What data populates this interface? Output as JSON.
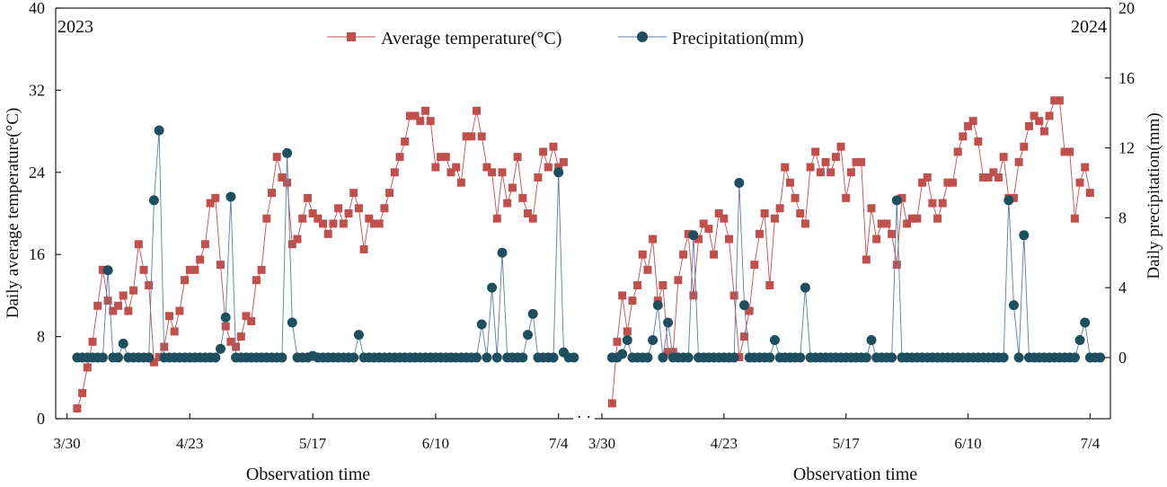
{
  "chart_data": {
    "type": "line",
    "legend": {
      "position": "top-center",
      "items": [
        {
          "name": "Average temperature(°C)",
          "marker": "square",
          "color": "#c0504d"
        },
        {
          "name": "Precipitation(mm)",
          "marker": "circle",
          "color": "#1f4e5f"
        }
      ]
    },
    "y_left": {
      "label": "Daily average temperature(°C)",
      "ylim": [
        0,
        40
      ],
      "ticks": [
        0,
        8,
        16,
        24,
        32,
        40
      ]
    },
    "y_right": {
      "label": "Daily precipitation(mm)",
      "ylim": [
        -3.5,
        20
      ],
      "ticks": [
        0,
        4,
        8,
        12,
        16,
        20
      ]
    },
    "xlabel": "Observation time",
    "x_ticks": [
      {
        "label": "3/30",
        "day": 0
      },
      {
        "label": "4/23",
        "day": 24
      },
      {
        "label": "5/17",
        "day": 48
      },
      {
        "label": "6/10",
        "day": 72
      },
      {
        "label": "7/4",
        "day": 96
      }
    ],
    "panels": [
      {
        "year_label": "2023",
        "start_day": 2,
        "temperature": [
          1,
          2.5,
          5,
          7.5,
          11,
          14.5,
          11.5,
          10.5,
          11,
          12,
          10.5,
          12.5,
          17,
          14.5,
          13,
          5.5,
          6,
          7,
          10,
          8.5,
          10.5,
          13.5,
          14.5,
          14.5,
          15.5,
          17,
          21,
          21.5,
          15,
          9,
          7.5,
          7,
          8,
          10,
          9.5,
          13.5,
          14.5,
          19.5,
          22,
          25.5,
          23.5,
          23,
          17,
          17.5,
          19.5,
          21.5,
          20,
          19.5,
          19,
          18,
          19,
          20.5,
          19,
          20,
          22,
          20.5,
          16.5,
          19.5,
          19,
          19,
          20.5,
          22,
          24,
          25.5,
          27,
          29.5,
          29.5,
          29,
          30,
          29,
          24.5,
          25.5,
          25.5,
          24,
          24.5,
          23,
          27.5,
          27.5,
          30,
          27.5,
          24.5,
          24,
          19.5,
          24,
          21,
          22.5,
          25.5,
          21.5,
          20,
          19.5,
          23.5,
          26,
          24.5,
          26.5,
          24.5,
          25
        ],
        "precipitation": [
          0,
          0,
          0,
          0,
          0,
          0,
          5,
          0,
          0,
          0.8,
          0,
          0,
          0,
          0,
          0,
          9,
          13,
          0,
          0,
          0,
          0,
          0,
          0,
          0,
          0,
          0,
          0,
          0,
          0.5,
          2.3,
          9.2,
          0,
          0,
          0,
          0,
          0,
          0,
          0,
          0,
          0,
          0,
          11.7,
          2,
          0,
          0,
          0,
          0.1,
          0,
          0,
          0,
          0,
          0,
          0,
          0,
          0,
          1.3,
          0,
          0,
          0,
          0,
          0,
          0,
          0,
          0,
          0,
          0,
          0,
          0,
          0,
          0,
          0,
          0,
          0,
          0,
          0,
          0,
          0,
          0,
          0,
          1.9,
          0,
          4,
          0,
          6,
          0,
          0,
          0,
          0,
          1.3,
          2.5,
          0,
          0,
          0,
          0,
          10.6,
          0.3,
          0,
          0
        ]
      },
      {
        "year_label": "2024",
        "start_day": 2,
        "temperature": [
          1.5,
          7.5,
          12,
          8.5,
          11.5,
          13,
          16,
          14.5,
          17.5,
          11.5,
          13,
          6.5,
          6.5,
          13.5,
          16,
          18,
          12,
          17.5,
          19,
          18.5,
          16,
          20,
          19.5,
          17.5,
          12,
          6,
          8,
          10.5,
          15,
          18,
          20,
          13,
          19.5,
          20.5,
          24.5,
          23,
          21.5,
          20,
          19,
          24.5,
          26,
          24,
          25,
          24,
          25.5,
          26.5,
          21.5,
          24,
          25,
          25,
          15.5,
          20.5,
          17.5,
          19,
          19,
          18,
          15,
          21.5,
          19,
          19.5,
          19.5,
          23,
          23.5,
          21,
          19.5,
          21,
          23,
          23,
          26,
          27.5,
          28.5,
          29,
          27,
          23.5,
          23.5,
          24,
          23.5,
          25.5,
          21.5,
          21.5,
          25,
          26.5,
          28.5,
          29.5,
          29,
          28,
          29.5,
          31,
          31,
          26,
          26,
          19.5,
          23,
          24.5,
          22
        ],
        "precipitation": [
          0,
          0,
          0.2,
          1,
          0,
          0,
          0,
          0,
          1,
          3,
          0,
          2,
          0,
          0,
          0,
          0,
          7,
          0,
          0,
          0,
          0,
          0,
          0,
          0,
          0,
          10,
          3,
          0,
          0,
          0,
          0,
          0,
          1,
          0,
          0,
          0,
          0,
          0,
          4,
          0,
          0,
          0,
          0,
          0,
          0,
          0,
          0,
          0,
          0,
          0,
          0,
          1,
          0,
          0,
          0,
          0,
          9,
          0,
          0,
          0,
          0,
          0,
          0,
          0,
          0,
          0,
          0,
          0,
          0,
          0,
          0,
          0,
          0,
          0,
          0,
          0,
          0,
          0,
          9,
          3,
          0,
          7,
          0,
          0,
          0,
          0,
          0,
          0,
          0,
          0,
          0,
          0,
          1,
          2,
          0,
          0,
          0
        ]
      }
    ]
  }
}
